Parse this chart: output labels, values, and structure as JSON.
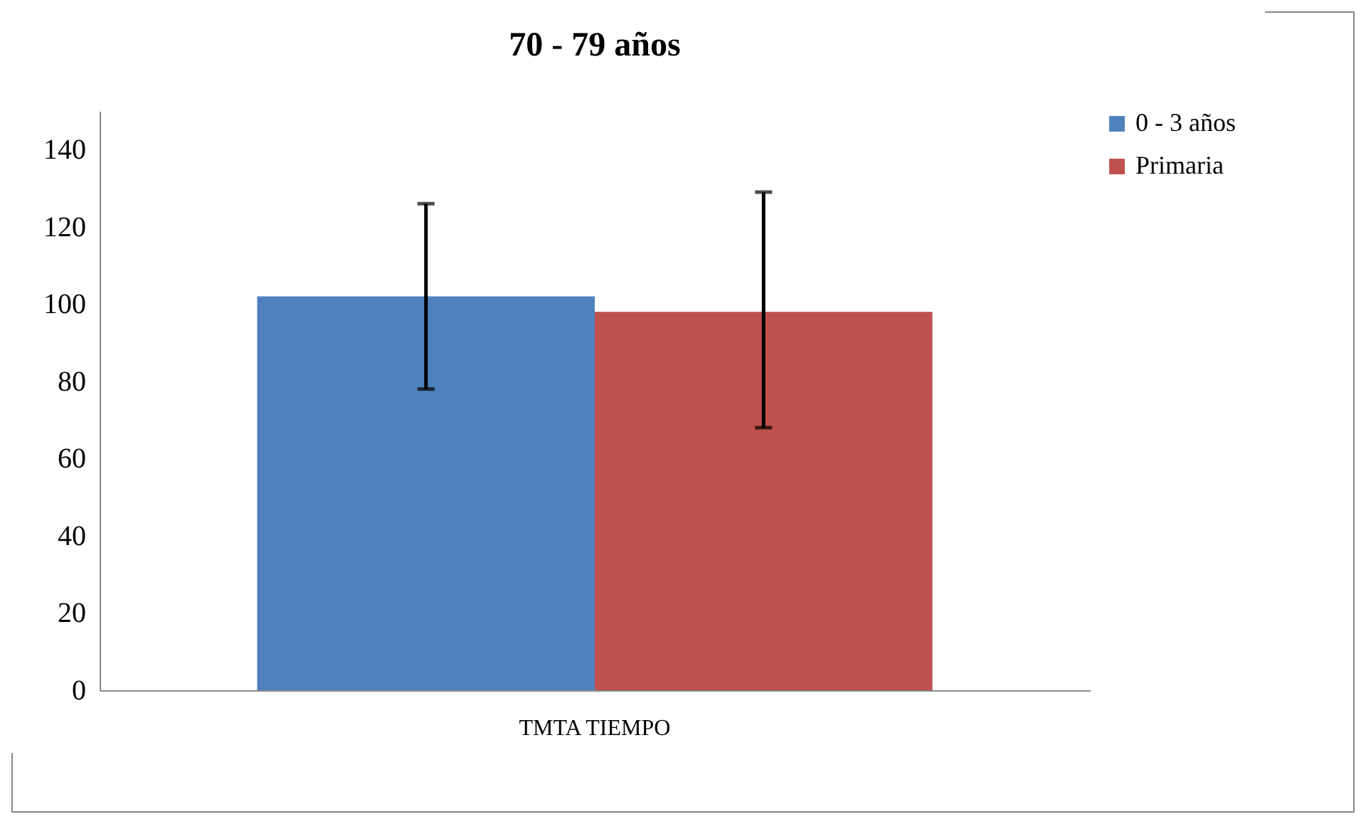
{
  "chart_data": {
    "type": "bar",
    "title": "70 - 79 años",
    "categories": [
      "TMTA TIEMPO"
    ],
    "series": [
      {
        "name": "0 - 3 años",
        "color": "#4f81bd",
        "values": [
          102
        ],
        "errors": [
          [
            78,
            126
          ]
        ]
      },
      {
        "name": "Primaria",
        "color": "#c0504d",
        "values": [
          98
        ],
        "errors": [
          [
            68,
            129
          ]
        ]
      }
    ],
    "ylim": [
      0,
      150
    ],
    "yticks": [
      0,
      20,
      40,
      60,
      80,
      100,
      120,
      140
    ],
    "grid": false,
    "legend": "right"
  }
}
